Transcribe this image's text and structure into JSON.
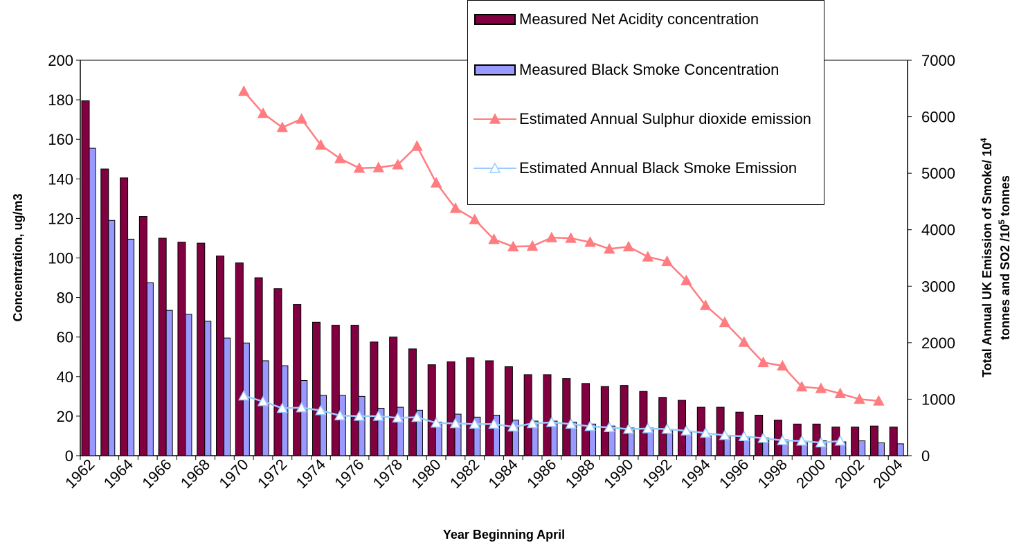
{
  "chart_data": {
    "type": "bar",
    "x_label": "Year Beginning April",
    "y_label": "Concentration, ug/m3",
    "y2_label_parts": [
      "Total Annual UK Emission of Smoke/ 10",
      "4",
      "tonnes and  SO2 /10",
      "5",
      " tonnes"
    ],
    "categories": [
      "1962",
      null,
      "1964",
      null,
      "1966",
      null,
      "1968",
      null,
      "1970",
      null,
      "1972",
      null,
      "1974",
      null,
      "1976",
      null,
      "1978",
      null,
      "1980",
      null,
      "1982",
      null,
      "1984",
      null,
      "1986",
      null,
      "1988",
      null,
      "1990",
      null,
      "1992",
      null,
      "1994",
      null,
      "1996",
      null,
      "1998",
      null,
      "2000",
      null,
      "2002",
      null,
      "2004"
    ],
    "ylim": [
      0,
      200
    ],
    "yticks": [
      0,
      20,
      40,
      60,
      80,
      100,
      120,
      140,
      160,
      180,
      200
    ],
    "y2lim": [
      0,
      7000
    ],
    "y2ticks": [
      0,
      1000,
      2000,
      3000,
      4000,
      5000,
      6000,
      7000
    ],
    "grid": false,
    "series": [
      {
        "name": "Measured Net Acidity concentration",
        "type": "bar",
        "color": "#800040",
        "values": [
          179.5,
          145,
          140.5,
          121,
          110,
          108,
          107.5,
          101,
          97.5,
          90,
          84.5,
          76.5,
          67.5,
          66,
          66,
          57.5,
          60,
          54,
          46,
          47.5,
          49.5,
          48,
          45,
          41,
          41,
          39,
          36.5,
          35,
          35.5,
          32.5,
          29.5,
          28,
          24.5,
          24.5,
          22,
          20.5,
          18,
          16,
          16,
          14.5,
          14.5,
          15,
          14.5
        ]
      },
      {
        "name": "Measured Black Smoke Concentration",
        "type": "bar",
        "color": "#9999ff",
        "values": [
          155.5,
          119,
          109.5,
          87.5,
          73.5,
          71.5,
          68,
          59.5,
          57,
          48,
          45.5,
          38,
          30.5,
          30.5,
          30,
          24,
          24.5,
          23,
          17,
          21,
          19.5,
          20.5,
          18,
          17.5,
          17.5,
          17,
          16,
          15,
          14,
          14,
          13,
          12,
          10,
          10,
          9.5,
          9,
          8,
          7,
          7.5,
          7,
          7.5,
          6.5,
          6
        ]
      },
      {
        "name": "Estimated Annual Sulphur dioxide emission",
        "type": "line",
        "axis": "y2",
        "color": "#ff7c80",
        "marker_filled": true,
        "values": [
          null,
          null,
          null,
          null,
          null,
          null,
          null,
          null,
          6450,
          6060,
          5810,
          5960,
          5500,
          5260,
          5090,
          5100,
          5150,
          5480,
          4830,
          4380,
          4180,
          3830,
          3700,
          3710,
          3860,
          3850,
          3780,
          3660,
          3700,
          3520,
          3440,
          3100,
          2660,
          2360,
          2010,
          1650,
          1590,
          1220,
          1190,
          1100,
          1000,
          970,
          null
        ]
      },
      {
        "name": "Estimated Annual Black Smoke Emission",
        "type": "line",
        "axis": "y2",
        "color": "#99ccff",
        "marker_filled": false,
        "values": [
          null,
          null,
          null,
          null,
          null,
          null,
          null,
          null,
          1060,
          960,
          840,
          850,
          800,
          710,
          700,
          700,
          670,
          680,
          580,
          570,
          560,
          560,
          510,
          570,
          590,
          560,
          520,
          500,
          470,
          480,
          470,
          440,
          400,
          360,
          340,
          310,
          270,
          260,
          230,
          260,
          null,
          null,
          null
        ]
      }
    ]
  }
}
